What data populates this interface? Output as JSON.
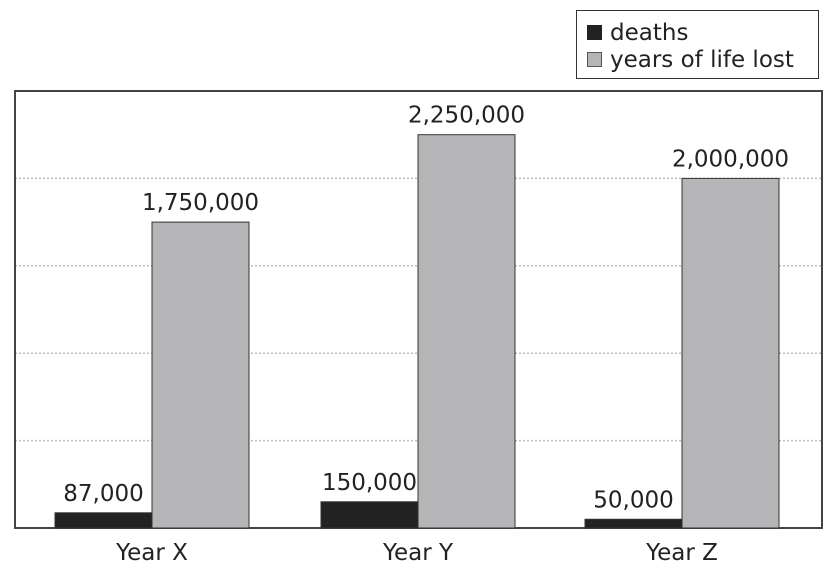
{
  "colors": {
    "deaths": "#222222",
    "yll": "#b5b5b7",
    "grid": "#bdbdbd",
    "frame": "#444444"
  },
  "legend": {
    "deaths": "deaths",
    "yll": "years of life lost"
  },
  "chart_data": {
    "type": "bar",
    "categories": [
      "Year X",
      "Year Y",
      "Year Z"
    ],
    "series": [
      {
        "name": "deaths",
        "values": [
          87000,
          150000,
          50000
        ],
        "labels": [
          "87,000",
          "150,000",
          "50,000"
        ]
      },
      {
        "name": "years of life lost",
        "values": [
          1750000,
          2250000,
          2000000
        ],
        "labels": [
          "1,750,000",
          "2,250,000",
          "2,000,000"
        ]
      }
    ],
    "ylim": [
      0,
      2500000
    ],
    "grid": true,
    "legend_position": "top-right",
    "title": "",
    "xlabel": "",
    "ylabel": ""
  }
}
